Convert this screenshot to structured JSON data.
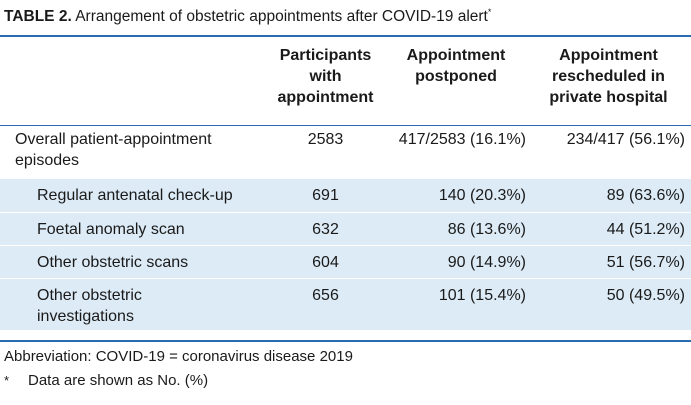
{
  "title": {
    "label": "TABLE 2.",
    "text": "Arrangement of obstetric appointments after COVID-19 alert",
    "marker": "*"
  },
  "headers": {
    "col1": "",
    "col2": "Participants with appointment",
    "col3": "Appointment postponed",
    "col4": "Appointment rescheduled in private hospital"
  },
  "rows": [
    {
      "label": "Overall patient-appointment episodes",
      "participants": "2583",
      "postponed": "417/2583 (16.1%)",
      "rescheduled": "234/417 (56.1%)"
    },
    {
      "label": "Regular antenatal check-up",
      "participants": "691",
      "postponed": "140 (20.3%)",
      "rescheduled": "89 (63.6%)"
    },
    {
      "label": "Foetal anomaly scan",
      "participants": "632",
      "postponed": "86 (13.6%)",
      "rescheduled": "44 (51.2%)"
    },
    {
      "label": "Other obstetric scans",
      "participants": "604",
      "postponed": "90 (14.9%)",
      "rescheduled": "51 (56.7%)"
    },
    {
      "label": "Other obstetric investigations",
      "participants": "656",
      "postponed": "101 (15.4%)",
      "rescheduled": "50 (49.5%)"
    }
  ],
  "footnotes": {
    "abbreviation": "Abbreviation: COVID-19 = coronavirus disease 2019",
    "marker": "*",
    "data_note": "Data are shown as No. (%)"
  },
  "colors": {
    "rule": "#2b6bb0",
    "row_shade": "#dcebf6"
  }
}
